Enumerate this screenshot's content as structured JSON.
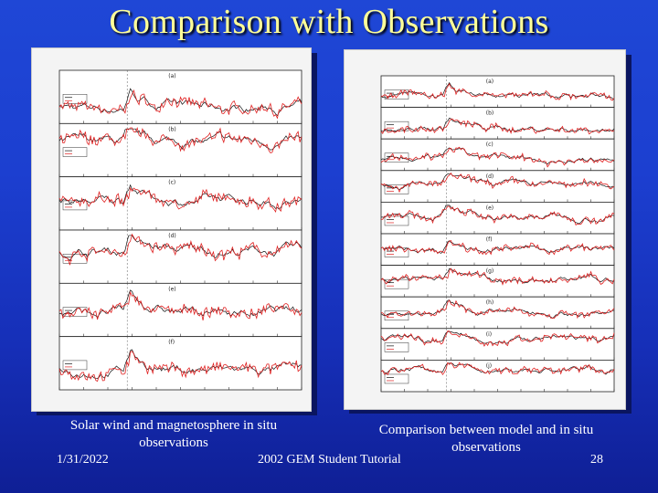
{
  "slide": {
    "title": "Comparison with Observations",
    "left_caption": "Solar wind and magnetosphere in situ observations",
    "right_caption": "Comparison between model and in situ observations",
    "footer": {
      "date": "1/31/2022",
      "center": "2002 GEM Student Tutorial",
      "page": "28"
    }
  },
  "colors": {
    "title": "#ffff99",
    "background": "#1c3fd0",
    "model_trace": "#e02020",
    "obs_trace": "#111111"
  },
  "left_figure": {
    "panel_count": 6,
    "panel_letters": [
      "(a)",
      "(b)",
      "(c)",
      "(d)",
      "(e)",
      "(f)"
    ]
  },
  "right_figure": {
    "panel_count": 10,
    "panel_letters": [
      "(a)",
      "(b)",
      "(c)",
      "(d)",
      "(e)",
      "(f)",
      "(g)",
      "(h)",
      "(i)",
      "(j)"
    ]
  }
}
